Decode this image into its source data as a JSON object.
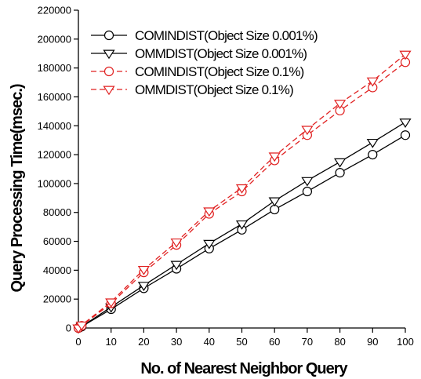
{
  "chart_data": {
    "type": "line",
    "xlabel": "No. of Nearest Neighbor Query",
    "ylabel": "Query Processing Time(msec.)",
    "xlim": [
      0,
      100
    ],
    "ylim": [
      0,
      220000
    ],
    "xticks": [
      0,
      10,
      20,
      30,
      40,
      50,
      60,
      70,
      80,
      90,
      100
    ],
    "yticks": [
      0,
      20000,
      40000,
      60000,
      80000,
      100000,
      120000,
      140000,
      160000,
      180000,
      200000,
      220000
    ],
    "grid": false,
    "legend_position": "top-left",
    "series": [
      {
        "name": "COMINDIST(Object Size 0.001%)",
        "color": "#000000",
        "dash": "solid",
        "marker": "circle",
        "x": [
          0,
          1,
          10,
          20,
          30,
          40,
          50,
          60,
          70,
          80,
          90,
          100
        ],
        "y": [
          0,
          1000,
          13000,
          27500,
          41000,
          55000,
          68000,
          82000,
          94500,
          107500,
          120000,
          133500
        ]
      },
      {
        "name": "OMMDIST(Object Size 0.001%)",
        "color": "#000000",
        "dash": "solid",
        "marker": "triangle-down",
        "x": [
          0,
          1,
          10,
          20,
          30,
          40,
          50,
          60,
          70,
          80,
          90,
          100
        ],
        "y": [
          0,
          1000,
          14500,
          29500,
          44000,
          58500,
          72000,
          88000,
          102000,
          115000,
          128500,
          142500
        ]
      },
      {
        "name": "COMINDIST(Object Size 0.1%)",
        "color": "#e02020",
        "dash": "dashed",
        "marker": "circle",
        "x": [
          0,
          1,
          10,
          20,
          30,
          40,
          50,
          60,
          70,
          80,
          90,
          100
        ],
        "y": [
          0,
          1500,
          17000,
          38500,
          57500,
          79000,
          94500,
          116000,
          133500,
          150500,
          166500,
          184000
        ]
      },
      {
        "name": "OMMDIST(Object Size 0.1%)",
        "color": "#e02020",
        "dash": "dashed",
        "marker": "triangle-down",
        "x": [
          0,
          1,
          10,
          20,
          30,
          40,
          50,
          60,
          70,
          80,
          90,
          100
        ],
        "y": [
          0,
          2000,
          18000,
          40500,
          59500,
          81000,
          97000,
          119000,
          137500,
          155500,
          171000,
          189500
        ]
      }
    ]
  }
}
